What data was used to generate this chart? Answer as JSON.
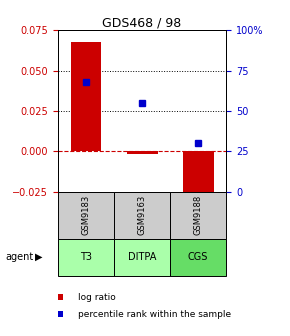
{
  "title": "GDS468 / 98",
  "samples": [
    "GSM9183",
    "GSM9163",
    "GSM9188"
  ],
  "agents": [
    "T3",
    "DITPA",
    "CGS"
  ],
  "log_ratios": [
    0.068,
    -0.002,
    -0.03
  ],
  "percentile_ranks": [
    68,
    55,
    30
  ],
  "ylim_left": [
    -0.025,
    0.075
  ],
  "ylim_right": [
    0,
    100
  ],
  "yticks_left": [
    -0.025,
    0,
    0.025,
    0.05,
    0.075
  ],
  "yticks_right": [
    0,
    25,
    50,
    75,
    100
  ],
  "bar_color": "#cc0000",
  "dot_color": "#0000cc",
  "zero_line_color": "#cc0000",
  "agent_colors": [
    "#aaffaa",
    "#aaffaa",
    "#66dd66"
  ],
  "sample_bg": "#cccccc",
  "legend_log_color": "#cc0000",
  "legend_pct_color": "#0000cc",
  "title_fontsize": 9,
  "tick_fontsize": 7,
  "bar_width": 0.55
}
